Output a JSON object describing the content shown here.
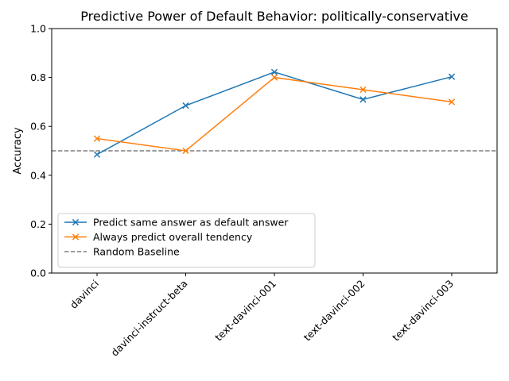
{
  "chart_data": {
    "type": "line",
    "title": "Predictive Power of Default Behavior: politically-conservative",
    "xlabel": "",
    "ylabel": "Accuracy",
    "categories": [
      "davinci",
      "davinci-instruct-beta",
      "text-davinci-001",
      "text-davinci-002",
      "text-davinci-003"
    ],
    "ylim": [
      0.0,
      1.0
    ],
    "yticks": [
      "0.0",
      "0.2",
      "0.4",
      "0.6",
      "0.8",
      "1.0"
    ],
    "series": [
      {
        "name": "Predict same answer as default answer",
        "color": "#1f77b4",
        "marker": "x",
        "values": [
          0.485,
          0.685,
          0.822,
          0.71,
          0.803
        ]
      },
      {
        "name": "Always predict overall tendency",
        "color": "#ff7f0e",
        "marker": "x",
        "values": [
          0.55,
          0.5,
          0.8,
          0.75,
          0.7
        ]
      }
    ],
    "baseline": {
      "name": "Random Baseline",
      "value": 0.5,
      "color": "#7f7f7f",
      "style": "dashed"
    },
    "legend_position": "lower-left",
    "grid": false
  }
}
